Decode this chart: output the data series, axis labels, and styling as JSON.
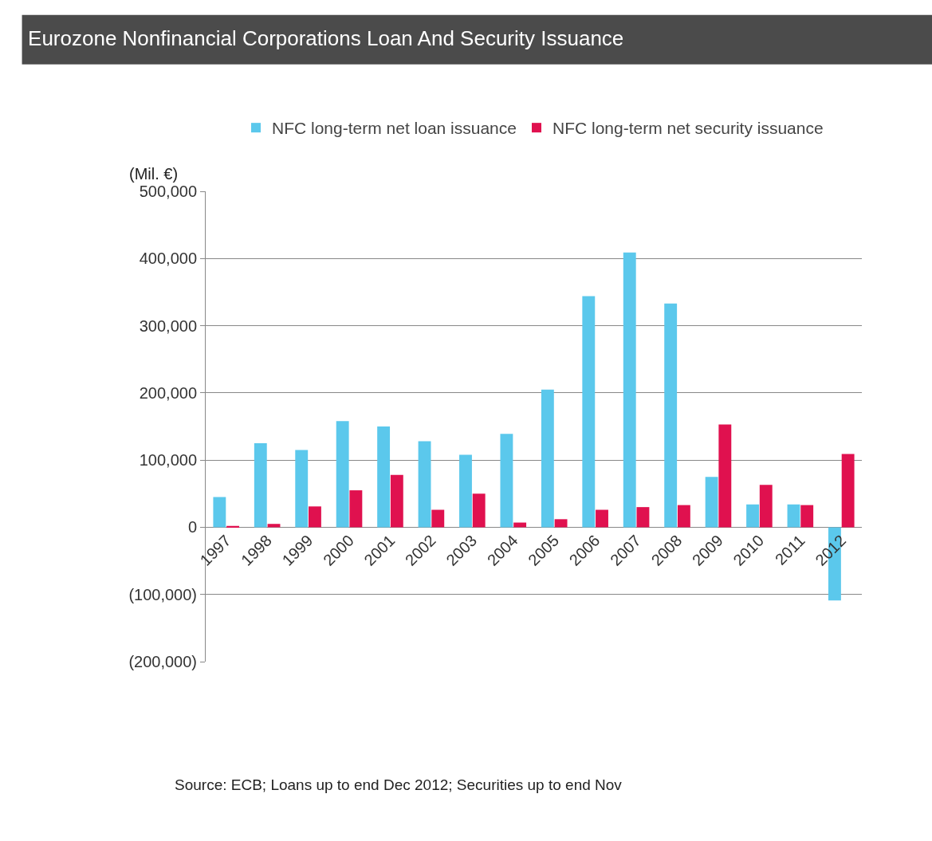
{
  "chart_data": {
    "type": "bar",
    "title": "Eurozone Nonfinancial Corporations Loan And Security Issuance",
    "ylabel": "(Mil. €)",
    "categories": [
      "1997",
      "1998",
      "1999",
      "2000",
      "2001",
      "2002",
      "2003",
      "2004",
      "2005",
      "2006",
      "2007",
      "2008",
      "2009",
      "2010",
      "2011",
      "2012"
    ],
    "series": [
      {
        "name": "NFC long-term net loan issuance",
        "color": "#5bc8ec",
        "values": [
          45000,
          125000,
          115000,
          158000,
          150000,
          128000,
          108000,
          139000,
          205000,
          344000,
          409000,
          333000,
          75000,
          34000,
          34000,
          -109000
        ]
      },
      {
        "name": "NFC long-term net security issuance",
        "color": "#e0114f",
        "values": [
          2000,
          5000,
          31000,
          55000,
          78000,
          26000,
          50000,
          7000,
          12000,
          26000,
          30000,
          33000,
          153000,
          63000,
          33000,
          109000
        ]
      }
    ],
    "ylim": [
      -200000,
      500000
    ],
    "yticks": [
      {
        "value": -200000,
        "label": "(200,000)"
      },
      {
        "value": -100000,
        "label": "(100,000)"
      },
      0,
      {
        "value": 100000,
        "label": "100,000"
      },
      {
        "value": 200000,
        "label": "200,000"
      },
      {
        "value": 300000,
        "label": "300,000"
      },
      {
        "value": 400000,
        "label": "400,000"
      },
      {
        "value": 500000,
        "label": "500,000"
      }
    ],
    "grid": "y",
    "legend": "top",
    "annotations": [
      "Source: ECB; Loans up to end Dec 2012; Securities up to end Nov"
    ]
  }
}
